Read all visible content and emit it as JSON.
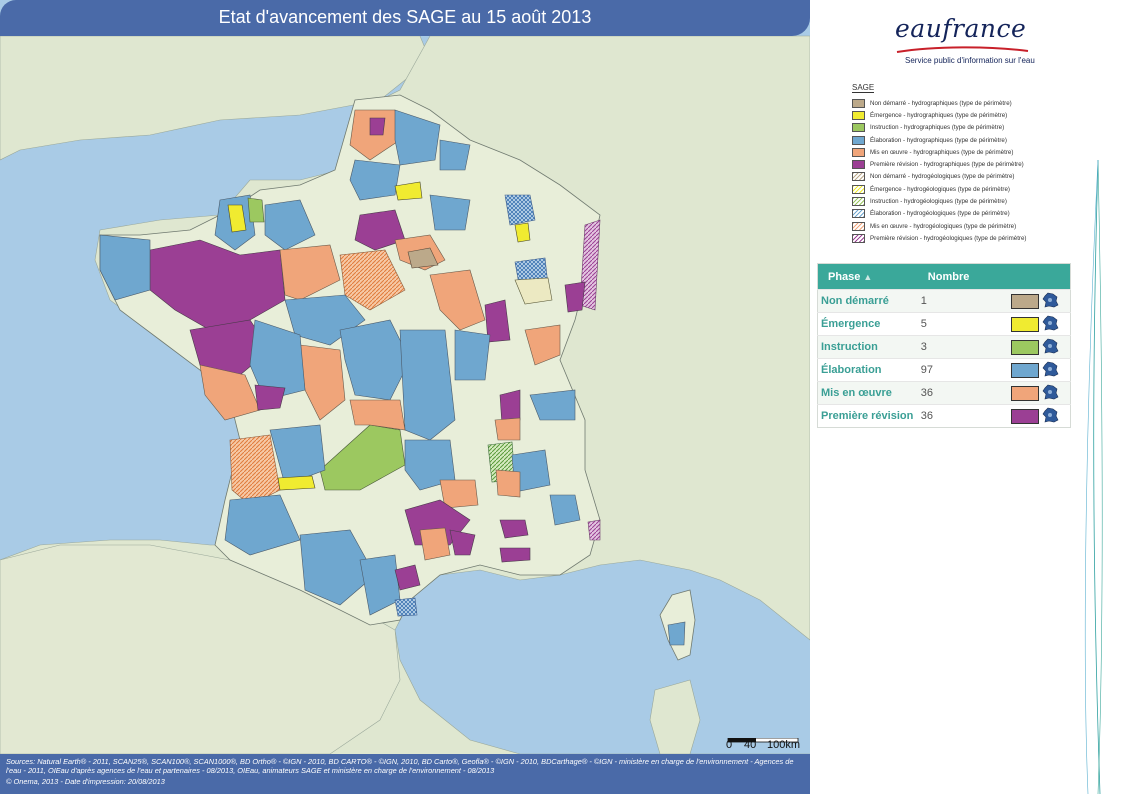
{
  "map": {
    "title": "Etat d'avancement des SAGE au 15 août 2013",
    "colors": {
      "sea": "#a9cbe6",
      "land_foreign": "#dfe7d0",
      "france_base": "#e8eed9",
      "border": "#707a70"
    },
    "scale": {
      "label_0": "0",
      "label_40": "40",
      "label_100": "100km"
    }
  },
  "logo": {
    "name": "eaufrance",
    "tagline": "Service public d'information sur l'eau"
  },
  "legend": {
    "title": "SAGE",
    "items": [
      {
        "label": "Non démarré - hydrographiques (type de périmètre)",
        "color": "#bca98a",
        "hatched": false
      },
      {
        "label": "Émergence - hydrographiques (type de périmètre)",
        "color": "#f0eb30",
        "hatched": false
      },
      {
        "label": "Instruction - hydrographiques (type de périmètre)",
        "color": "#9cc860",
        "hatched": false
      },
      {
        "label": "Élaboration - hydrographiques (type de périmètre)",
        "color": "#6fa7cf",
        "hatched": false
      },
      {
        "label": "Mis en œuvre - hydrographiques (type de périmètre)",
        "color": "#f0a57a",
        "hatched": false
      },
      {
        "label": "Première révision - hydrographiques (type de périmètre)",
        "color": "#9b3f94",
        "hatched": false
      },
      {
        "label": "Non démarré - hydrogéologiques (type de périmètre)",
        "color": "#bca98a",
        "hatched": true
      },
      {
        "label": "Émergence - hydrogéologiques (type de périmètre)",
        "color": "#f0eb30",
        "hatched": true
      },
      {
        "label": "Instruction - hydrogéologiques (type de périmètre)",
        "color": "#9cc860",
        "hatched": true
      },
      {
        "label": "Élaboration - hydrogéologiques (type de périmètre)",
        "color": "#6fa7cf",
        "hatched": true
      },
      {
        "label": "Mis en œuvre - hydrogéologiques (type de périmètre)",
        "color": "#f0a57a",
        "hatched": true
      },
      {
        "label": "Première révision - hydrogéologiques (type de périmètre)",
        "color": "#9b3f94",
        "hatched": true
      }
    ]
  },
  "table": {
    "header_phase": "Phase",
    "header_nombre": "Nombre",
    "rows": [
      {
        "phase": "Non démarré",
        "count": "1",
        "color": "#bca98a"
      },
      {
        "phase": "Émergence",
        "count": "5",
        "color": "#f0eb30"
      },
      {
        "phase": "Instruction",
        "count": "3",
        "color": "#9cc860"
      },
      {
        "phase": "Élaboration",
        "count": "97",
        "color": "#6fa7cf"
      },
      {
        "phase": "Mis en œuvre",
        "count": "36",
        "color": "#f0a57a"
      },
      {
        "phase": "Première révision",
        "count": "36",
        "color": "#9b3f94"
      }
    ]
  },
  "footer": {
    "sources": "Sources: Natural Earth® - 2011, SCAN25®, SCAN100®, SCAN1000®, BD Ortho® - ©IGN - 2010, BD CARTO® - ©IGN, 2010, BD Carto®, Geofla® - ©IGN - 2010, BDCarthage® - ©IGN - ministère en charge de l'environnement - Agences de l'eau - 2011, OIEau d'après agences de l'eau et partenaires - 08/2013, OIEau, animateurs SAGE et ministère en charge de l'environnement - 08/2013",
    "credit": "© Onema, 2013 - Date d'impression: 20/08/2013"
  }
}
